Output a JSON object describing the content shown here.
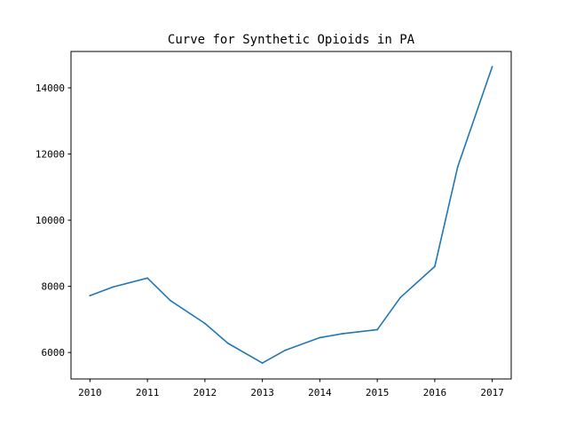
{
  "chart_data": {
    "type": "line",
    "title": "Curve for Synthetic Opioids in PA",
    "xlabel": "",
    "ylabel": "",
    "x": [
      2010,
      2010.4,
      2011,
      2011.4,
      2012,
      2012.4,
      2013,
      2013.4,
      2014,
      2014.4,
      2015,
      2015.4,
      2016,
      2016.4,
      2017
    ],
    "y": [
      7720,
      7980,
      8250,
      7570,
      6880,
      6280,
      5680,
      6070,
      6450,
      6570,
      6690,
      7660,
      8600,
      11620,
      14640
    ],
    "xlim": [
      2009.67,
      2017.33
    ],
    "ylim": [
      5200,
      15100
    ],
    "xticks": [
      2010,
      2011,
      2012,
      2013,
      2014,
      2015,
      2016,
      2017
    ],
    "yticks": [
      6000,
      8000,
      10000,
      12000,
      14000
    ],
    "xtick_labels": [
      "2010",
      "2011",
      "2012",
      "2013",
      "2014",
      "2015",
      "2016",
      "2017"
    ],
    "ytick_labels": [
      "6000",
      "8000",
      "10000",
      "12000",
      "14000"
    ],
    "grid": false,
    "legend": "none",
    "line_color": "#1f77b4"
  }
}
